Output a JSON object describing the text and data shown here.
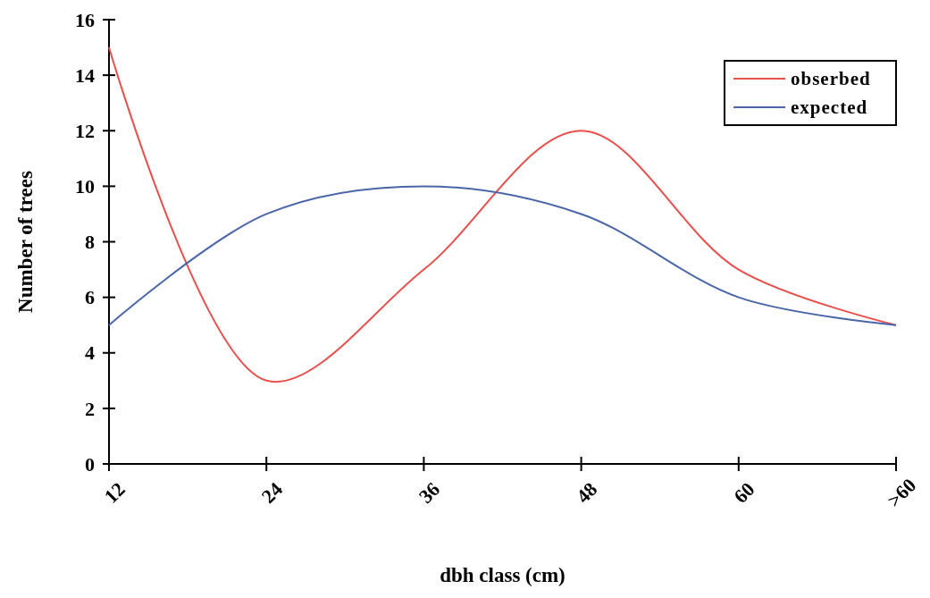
{
  "chart_data": {
    "type": "line",
    "xlabel": "dbh class (cm)",
    "ylabel": "Number of trees",
    "categories": [
      "12",
      "24",
      "36",
      "48",
      "60",
      ">60"
    ],
    "series": [
      {
        "name": "obserbed",
        "color": "#e8504c",
        "values": [
          15,
          3,
          7,
          12,
          7,
          5
        ]
      },
      {
        "name": "expected",
        "color": "#4a66a8",
        "values": [
          5,
          9,
          10,
          9,
          6,
          5
        ]
      }
    ],
    "ylim": [
      0,
      16
    ],
    "yticks": [
      0,
      2,
      4,
      6,
      8,
      10,
      12,
      14,
      16
    ],
    "legend": "top right",
    "grid": false,
    "marker": "none",
    "line_style": "solid"
  }
}
